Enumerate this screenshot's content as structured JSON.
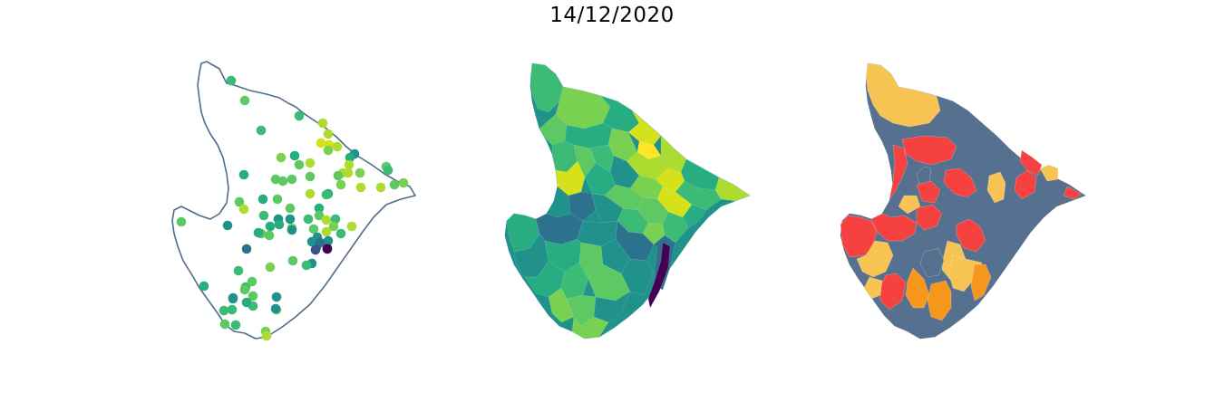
{
  "title": "14/12/2020",
  "colors": {
    "outline": "#4f6d8a",
    "viridis": [
      "#440154",
      "#3b528b",
      "#2c728e",
      "#21918c",
      "#27ad81",
      "#3bbb75",
      "#5ec962",
      "#79d151",
      "#addc30",
      "#d5e21a",
      "#fde725"
    ],
    "category": {
      "gray": "#56718f",
      "red": "#f5413f",
      "yellow": "#f7c453",
      "orange": "#f6961d"
    }
  },
  "panels": [
    {
      "id": "points",
      "kind": "point-map"
    },
    {
      "id": "choropleth-continuous",
      "kind": "choropleth"
    },
    {
      "id": "choropleth-categorical",
      "kind": "choropleth"
    }
  ]
}
